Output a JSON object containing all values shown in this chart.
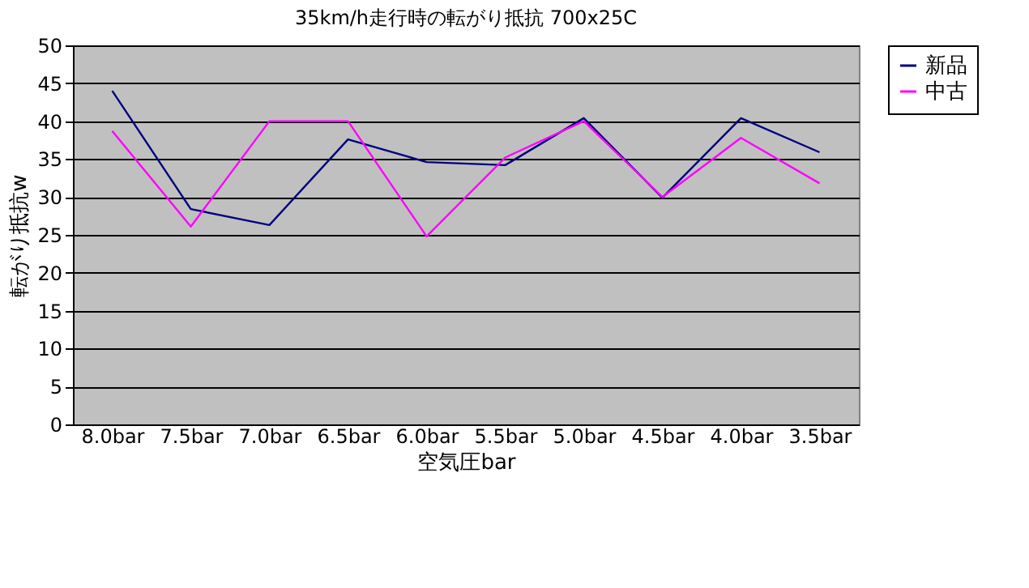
{
  "chart_data": {
    "type": "line",
    "title": "35km/h走行時の転がり抵抗 700x25C",
    "xlabel": "空気圧bar",
    "ylabel": "転がり抵抗w",
    "categories": [
      "8.0bar",
      "7.5bar",
      "7.0bar",
      "6.5bar",
      "6.0bar",
      "5.5bar",
      "5.0bar",
      "4.5bar",
      "4.0bar",
      "3.5bar"
    ],
    "series": [
      {
        "name": "新品",
        "color": "#000080",
        "values": [
          44.0,
          28.4,
          26.3,
          37.6,
          34.6,
          34.2,
          40.4,
          29.9,
          40.4,
          35.9
        ]
      },
      {
        "name": "中古",
        "color": "#ff00ff",
        "values": [
          38.7,
          26.1,
          40,
          40,
          24.8,
          35.2,
          40,
          30,
          37.8,
          31.8
        ]
      }
    ],
    "ylim": [
      0,
      50
    ],
    "yticks": [
      0,
      5,
      10,
      15,
      20,
      25,
      30,
      35,
      40,
      45,
      50
    ],
    "grid": "y",
    "legend": "right",
    "marker": "none",
    "line_style": "solid"
  }
}
